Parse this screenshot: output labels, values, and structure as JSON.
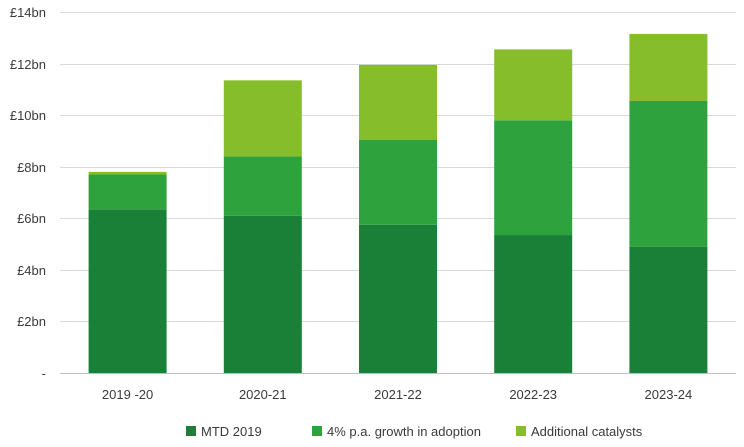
{
  "chart_data": {
    "type": "bar",
    "stacked": true,
    "categories": [
      "2019 -20",
      "2020-21",
      "2021-22",
      "2022-23",
      "2023-24"
    ],
    "series": [
      {
        "name": "MTD 2019",
        "color": "#1a8038",
        "values": [
          6.35,
          6.1,
          5.75,
          5.35,
          4.9
        ]
      },
      {
        "name": "4% p.a. growth in adoption",
        "color": "#2ea33d",
        "values": [
          1.35,
          2.3,
          3.3,
          4.45,
          5.65
        ]
      },
      {
        "name": "Additional catalysts",
        "color": "#86bd2b",
        "values": [
          0.1,
          2.95,
          2.9,
          2.75,
          2.6
        ]
      }
    ],
    "ylim": [
      0,
      14
    ],
    "yticks": [
      0,
      2,
      4,
      6,
      8,
      10,
      12,
      14
    ],
    "ytick_labels": [
      "-",
      "£2bn",
      "£4bn",
      "£6bn",
      "£8bn",
      "£10bn",
      "£12bn",
      "£14bn"
    ],
    "grid": true,
    "legend_position": "bottom",
    "title": "",
    "xlabel": "",
    "ylabel": ""
  }
}
